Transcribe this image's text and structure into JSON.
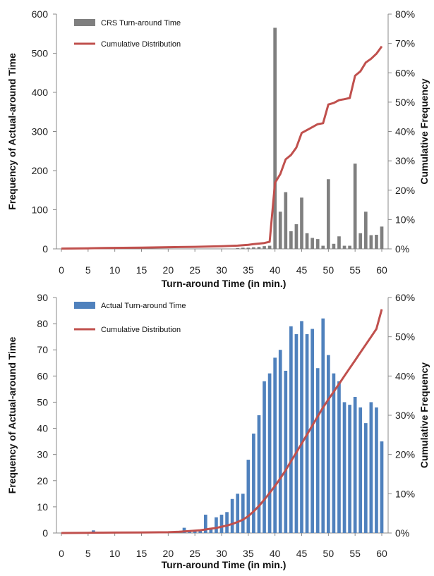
{
  "chart_data": [
    {
      "type": "bar",
      "title": "",
      "xlabel": "Turn-around Time (in min.)",
      "ylabel": "Frequency of Actual-around Time",
      "y2label": "Cumulative Frequency",
      "xlim": [
        0,
        60
      ],
      "ylim": [
        0,
        600
      ],
      "y2lim": [
        0,
        0.8
      ],
      "x_ticks": [
        "0",
        "5",
        "10",
        "15",
        "20",
        "25",
        "30",
        "35",
        "40",
        "45",
        "50",
        "55",
        "60"
      ],
      "y_ticks": [
        "0",
        "100",
        "200",
        "300",
        "400",
        "500",
        "600"
      ],
      "y2_ticks": [
        "0%",
        "10%",
        "20%",
        "30%",
        "40%",
        "50%",
        "60%",
        "70%",
        "80%"
      ],
      "legend_position": "top-left",
      "grid": false,
      "series": [
        {
          "name": "CRS Turn-around Time",
          "type": "bar",
          "color": "#7f7f7f",
          "x": [
            33,
            34,
            35,
            36,
            37,
            38,
            39,
            40,
            41,
            42,
            43,
            44,
            45,
            46,
            47,
            48,
            49,
            50,
            51,
            52,
            53,
            54,
            55,
            56,
            57,
            58,
            59,
            60
          ],
          "values": [
            2,
            3,
            3,
            4,
            5,
            7,
            8,
            565,
            95,
            145,
            45,
            63,
            131,
            40,
            28,
            25,
            8,
            178,
            13,
            32,
            8,
            8,
            218,
            40,
            95,
            35,
            36,
            57
          ]
        },
        {
          "name": "Cumulative Distribution",
          "type": "line",
          "color": "#c0504d",
          "x": [
            0,
            5,
            8,
            15,
            18,
            25,
            30,
            33,
            35,
            36,
            37,
            38,
            39,
            40,
            41,
            42,
            43,
            44,
            45,
            46,
            47,
            48,
            49,
            50,
            51,
            52,
            53,
            54,
            55,
            56,
            57,
            58,
            59,
            60
          ],
          "values": [
            0.001,
            0.002,
            0.003,
            0.004,
            0.005,
            0.007,
            0.009,
            0.011,
            0.014,
            0.016,
            0.018,
            0.02,
            0.024,
            0.225,
            0.255,
            0.305,
            0.32,
            0.345,
            0.395,
            0.405,
            0.415,
            0.425,
            0.428,
            0.492,
            0.497,
            0.507,
            0.51,
            0.514,
            0.59,
            0.605,
            0.635,
            0.648,
            0.665,
            0.69
          ]
        }
      ]
    },
    {
      "type": "bar",
      "title": "",
      "xlabel": "Turn-around Time (in min.)",
      "ylabel": "Frequency of Actual-around Time",
      "y2label": "Cumulative Frequency",
      "xlim": [
        0,
        60
      ],
      "ylim": [
        0,
        90
      ],
      "y2lim": [
        0,
        0.6
      ],
      "x_ticks": [
        "0",
        "5",
        "10",
        "15",
        "20",
        "25",
        "30",
        "35",
        "40",
        "45",
        "50",
        "55",
        "60"
      ],
      "y_ticks": [
        "0",
        "10",
        "20",
        "30",
        "40",
        "50",
        "60",
        "70",
        "80",
        "90"
      ],
      "y2_ticks": [
        "0%",
        "10%",
        "20%",
        "30%",
        "40%",
        "50%",
        "60%"
      ],
      "legend_position": "top-left",
      "grid": false,
      "series": [
        {
          "name": "Actual Turn-around Time",
          "type": "bar",
          "color": "#4f81bd",
          "x": [
            6,
            23,
            24,
            25,
            26,
            27,
            28,
            29,
            30,
            31,
            32,
            33,
            34,
            35,
            36,
            37,
            38,
            39,
            40,
            41,
            42,
            43,
            44,
            45,
            46,
            47,
            48,
            49,
            50,
            51,
            52,
            53,
            54,
            55,
            56,
            57,
            58,
            59,
            60
          ],
          "values": [
            1,
            2,
            1,
            1,
            1,
            7,
            2,
            6,
            7,
            8,
            13,
            15,
            15,
            28,
            38,
            45,
            58,
            61,
            67,
            70,
            62,
            79,
            76,
            81,
            76,
            78,
            63,
            82,
            68,
            61,
            58,
            50,
            49,
            52,
            48,
            42,
            50,
            48,
            35
          ]
        },
        {
          "name": "Cumulative Distribution",
          "type": "line",
          "color": "#c0504d",
          "x": [
            0,
            5,
            10,
            15,
            20,
            22,
            24,
            26,
            27,
            28,
            29,
            30,
            31,
            32,
            33,
            34,
            35,
            36,
            37,
            38,
            39,
            40,
            41,
            42,
            43,
            44,
            45,
            46,
            47,
            48,
            49,
            50,
            51,
            52,
            53,
            54,
            55,
            56,
            57,
            58,
            59,
            60
          ],
          "values": [
            0,
            0.0005,
            0.001,
            0.0015,
            0.002,
            0.003,
            0.005,
            0.007,
            0.009,
            0.011,
            0.013,
            0.016,
            0.019,
            0.023,
            0.028,
            0.034,
            0.043,
            0.055,
            0.069,
            0.085,
            0.102,
            0.12,
            0.139,
            0.16,
            0.183,
            0.205,
            0.228,
            0.251,
            0.274,
            0.297,
            0.32,
            0.34,
            0.36,
            0.38,
            0.4,
            0.42,
            0.44,
            0.46,
            0.48,
            0.5,
            0.52,
            0.57
          ]
        }
      ]
    }
  ]
}
